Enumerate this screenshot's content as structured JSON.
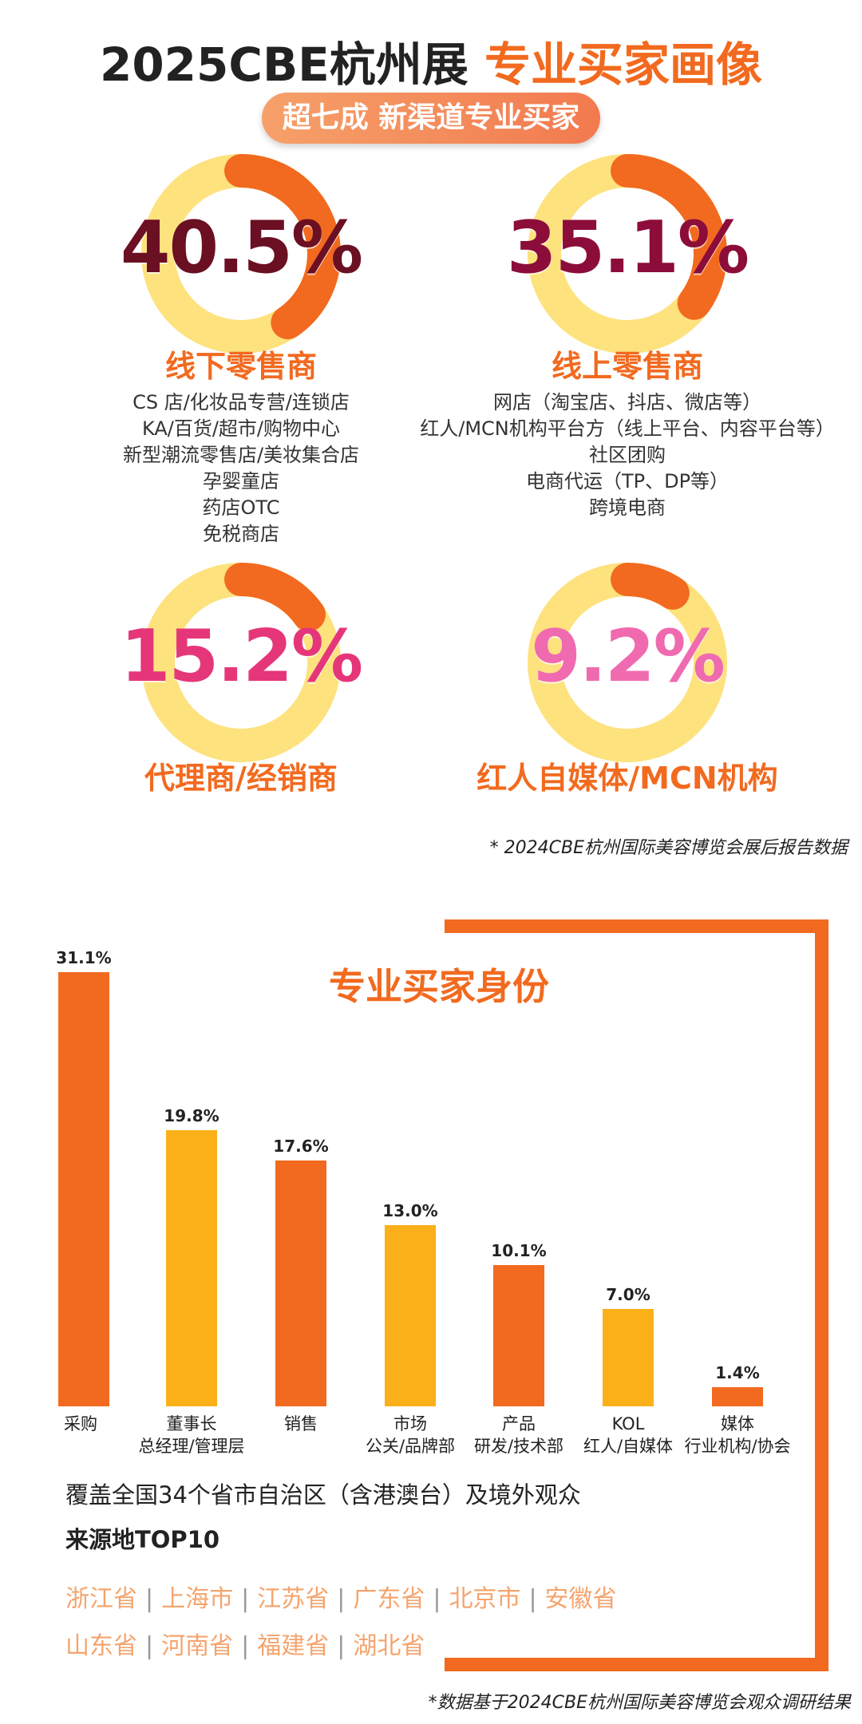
{
  "header": {
    "title_main": "2025CBE杭州展",
    "title_accent": "专业买家画像",
    "pill": "超七成 新渠道专业买家"
  },
  "colors": {
    "accent": "#f26a1f",
    "ring": "#fde27e",
    "bar_orange": "#f26a1f",
    "bar_yellow": "#fbb01a"
  },
  "channels": [
    {
      "percent": "40.5%",
      "value": 40.5,
      "percent_color": "#6b0f22",
      "category": "线下零售商",
      "details": [
        "CS 店/化妆品专营/连锁店",
        "KA/百货/超市/购物中心",
        "新型潮流零售店/美妆集合店",
        "孕婴童店",
        "药店OTC",
        "免税商店"
      ]
    },
    {
      "percent": "35.1%",
      "value": 35.1,
      "percent_color": "#8c0d3a",
      "category": "线上零售商",
      "details": [
        "网店（淘宝店、抖店、微店等）",
        "红人/MCN机构平台方（线上平台、内容平台等）",
        "社区团购",
        "电商代运（TP、DP等）",
        "跨境电商"
      ]
    },
    {
      "percent": "15.2%",
      "value": 15.2,
      "percent_color": "#e6367a",
      "category": "代理商/经销商",
      "details": []
    },
    {
      "percent": "9.2%",
      "value": 9.2,
      "percent_color": "#f06ab0",
      "category": "红人自媒体/MCN机构",
      "details": []
    }
  ],
  "note_top": "* 2024CBE杭州国际美容博览会展后报告数据",
  "chart_data": {
    "type": "bar",
    "title": "专业买家身份",
    "categories": [
      [
        "采购"
      ],
      [
        "董事长",
        "总经理/管理层"
      ],
      [
        "销售"
      ],
      [
        "市场",
        "公关/品牌部"
      ],
      [
        "产品",
        "研发/技术部"
      ],
      [
        "KOL",
        "红人/自媒体"
      ],
      [
        "媒体",
        "行业机构/协会"
      ]
    ],
    "values": [
      31.1,
      19.8,
      17.6,
      13.0,
      10.1,
      7.0,
      1.4
    ],
    "value_labels": [
      "31.1%",
      "19.8%",
      "17.6%",
      "13.0%",
      "10.1%",
      "7.0%",
      "1.4%"
    ],
    "colors": [
      "#f26a1f",
      "#fbb01a",
      "#f26a1f",
      "#fbb01a",
      "#f26a1f",
      "#fbb01a",
      "#f26a1f"
    ]
  },
  "coverage": "覆盖全国34个省市自治区（含港澳台）及境外观众",
  "top10_label": "来源地TOP10",
  "regions_row1": [
    "浙江省",
    "上海市",
    "江苏省",
    "广东省",
    "北京市",
    "安徽省"
  ],
  "regions_row2": [
    "山东省",
    "河南省",
    "福建省",
    "湖北省"
  ],
  "note_bottom": "*数据基于2024CBE杭州国际美容博览会观众调研结果"
}
